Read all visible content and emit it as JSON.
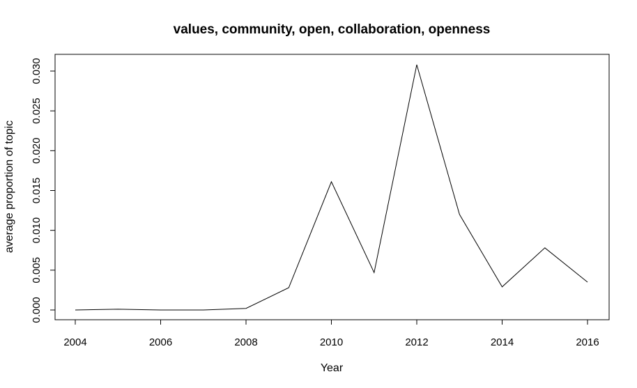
{
  "chart_data": {
    "type": "line",
    "title": "values, community, open, collaboration, openness",
    "xlabel": "Year",
    "ylabel": "average proportion of topic",
    "x": [
      2004,
      2005,
      2006,
      2007,
      2008,
      2009,
      2010,
      2011,
      2012,
      2013,
      2014,
      2015,
      2016
    ],
    "series": [
      {
        "values": [
          0.0,
          0.0001,
          0.0,
          0.0,
          0.0002,
          0.0028,
          0.0161,
          0.0047,
          0.0308,
          0.012,
          0.0029,
          0.0078,
          0.0035
        ]
      }
    ],
    "xlim": [
      2004,
      2016
    ],
    "ylim": [
      0.0,
      0.03
    ],
    "xticks": [
      2004,
      2006,
      2008,
      2010,
      2012,
      2014,
      2016
    ],
    "xtick_labels": [
      "2004",
      "2006",
      "2008",
      "2010",
      "2012",
      "2014",
      "2016"
    ],
    "yticks": [
      0.0,
      0.005,
      0.01,
      0.015,
      0.02,
      0.025,
      0.03
    ],
    "ytick_labels": [
      "0.000",
      "0.005",
      "0.010",
      "0.015",
      "0.020",
      "0.025",
      "0.030"
    ],
    "grid": false,
    "line_color": "#000000"
  }
}
